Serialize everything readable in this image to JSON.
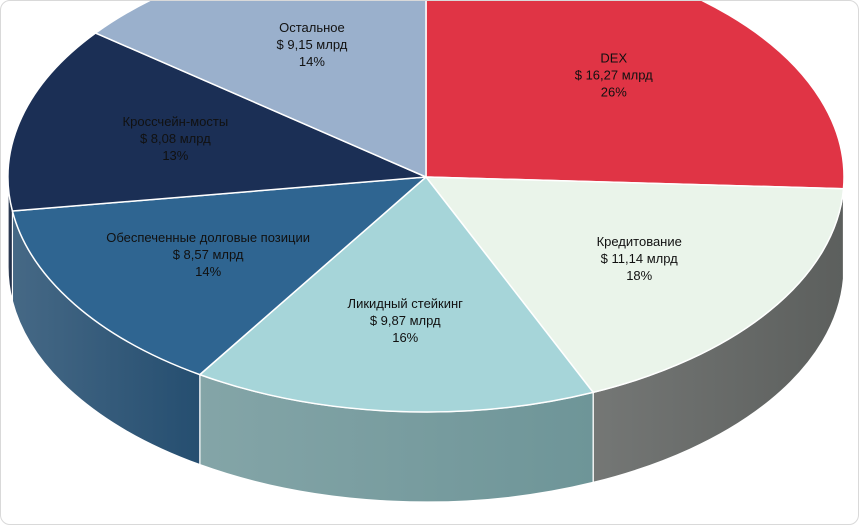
{
  "chart_data": {
    "type": "pie",
    "style": "3d",
    "title": "",
    "unit": "$ млрд",
    "slices": [
      {
        "name": "DEX",
        "value_label": "$ 16,27 млрд",
        "value": 16.27,
        "percent_label": "26%",
        "percent": 26,
        "color": "#E03445",
        "side_color": "#B02634",
        "text_color": "#ffffff"
      },
      {
        "name": "Кредитование",
        "value_label": "$ 11,14 млрд",
        "value": 11.14,
        "percent_label": "18%",
        "percent": 18,
        "color": "#EAF4EA",
        "side_color": "#5C5F5D",
        "text_color": "#111111"
      },
      {
        "name": "Ликидный стейкинг",
        "value_label": "$ 9,87 млрд",
        "value": 9.87,
        "percent_label": "16%",
        "percent": 16,
        "color": "#A6D5D9",
        "side_color": "#6E9598",
        "text_color": "#111111"
      },
      {
        "name": "Обеспеченные долговые позиции",
        "value_label": "$ 8,57 млрд",
        "value": 8.57,
        "percent_label": "14%",
        "percent": 14,
        "color": "#2F6591",
        "side_color": "#254E70",
        "text_color": "#ffffff"
      },
      {
        "name": "Кроссчейн-мосты",
        "value_label": "$ 8,08 млрд",
        "value": 8.08,
        "percent_label": "13%",
        "percent": 13,
        "color": "#1B2F55",
        "side_color": "#14243F",
        "text_color": "#ffffff"
      },
      {
        "name": "Остальное",
        "value_label": "$ 9,15 млрд",
        "value": 9.15,
        "percent_label": "14%",
        "percent": 14,
        "color": "#9AB0CC",
        "side_color": "#7A90AA",
        "text_color": "#111111"
      }
    ]
  }
}
